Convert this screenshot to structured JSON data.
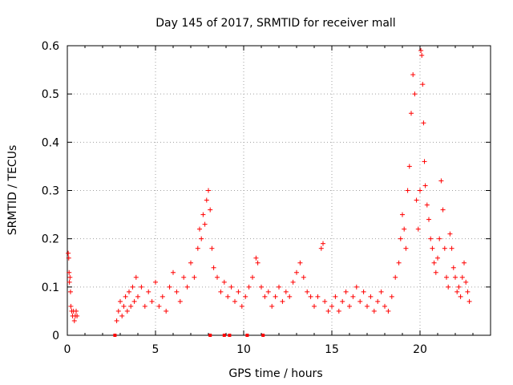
{
  "chart_data": {
    "type": "scatter",
    "title": "Day 145 of 2017, SRMTID for receiver mall",
    "xlabel": "GPS time / hours",
    "ylabel": "SRMTID / TECUs",
    "xlim": [
      0,
      24
    ],
    "ylim": [
      0,
      0.6
    ],
    "xticks": [
      0,
      5,
      10,
      15,
      20
    ],
    "xtick_labels": [
      "0",
      "5",
      "10",
      "15",
      "20"
    ],
    "yticks": [
      0,
      0.1,
      0.2,
      0.3,
      0.4,
      0.5,
      0.6
    ],
    "ytick_labels": [
      "0",
      "0.1",
      "0.2",
      "0.3",
      "0.4",
      "0.5",
      "0.6"
    ],
    "grid": true,
    "marker": "plus",
    "color": "#ff0000",
    "series": [
      {
        "name": "SRMTID",
        "points": [
          [
            0.05,
            0.17
          ],
          [
            0.08,
            0.16
          ],
          [
            0.1,
            0.13
          ],
          [
            0.12,
            0.11
          ],
          [
            0.15,
            0.12
          ],
          [
            0.18,
            0.09
          ],
          [
            0.2,
            0.06
          ],
          [
            0.25,
            0.05
          ],
          [
            0.3,
            0.04
          ],
          [
            0.35,
            0.05
          ],
          [
            0.4,
            0.03
          ],
          [
            0.45,
            0.04
          ],
          [
            0.5,
            0.05
          ],
          [
            0.55,
            0.04
          ],
          [
            2.8,
            0.03
          ],
          [
            2.9,
            0.05
          ],
          [
            3.0,
            0.07
          ],
          [
            3.1,
            0.04
          ],
          [
            3.2,
            0.06
          ],
          [
            3.3,
            0.08
          ],
          [
            3.4,
            0.05
          ],
          [
            3.5,
            0.09
          ],
          [
            3.6,
            0.06
          ],
          [
            3.7,
            0.1
          ],
          [
            3.8,
            0.07
          ],
          [
            3.9,
            0.12
          ],
          [
            4.0,
            0.08
          ],
          [
            4.2,
            0.1
          ],
          [
            4.4,
            0.06
          ],
          [
            4.6,
            0.09
          ],
          [
            4.8,
            0.07
          ],
          [
            5.0,
            0.11
          ],
          [
            5.2,
            0.06
          ],
          [
            5.4,
            0.08
          ],
          [
            5.6,
            0.05
          ],
          [
            5.8,
            0.1
          ],
          [
            6.0,
            0.13
          ],
          [
            6.2,
            0.09
          ],
          [
            6.4,
            0.07
          ],
          [
            6.6,
            0.12
          ],
          [
            6.8,
            0.1
          ],
          [
            7.0,
            0.15
          ],
          [
            7.2,
            0.12
          ],
          [
            7.4,
            0.18
          ],
          [
            7.5,
            0.22
          ],
          [
            7.6,
            0.2
          ],
          [
            7.7,
            0.25
          ],
          [
            7.8,
            0.23
          ],
          [
            7.9,
            0.28
          ],
          [
            8.0,
            0.3
          ],
          [
            8.1,
            0.26
          ],
          [
            8.2,
            0.18
          ],
          [
            8.3,
            0.14
          ],
          [
            8.5,
            0.12
          ],
          [
            8.7,
            0.09
          ],
          [
            8.9,
            0.11
          ],
          [
            9.1,
            0.08
          ],
          [
            9.3,
            0.1
          ],
          [
            9.5,
            0.07
          ],
          [
            9.7,
            0.09
          ],
          [
            9.9,
            0.06
          ],
          [
            10.1,
            0.08
          ],
          [
            10.3,
            0.1
          ],
          [
            10.5,
            0.12
          ],
          [
            10.7,
            0.16
          ],
          [
            10.8,
            0.15
          ],
          [
            11.0,
            0.1
          ],
          [
            11.2,
            0.08
          ],
          [
            11.4,
            0.09
          ],
          [
            11.6,
            0.06
          ],
          [
            11.8,
            0.08
          ],
          [
            12.0,
            0.1
          ],
          [
            12.2,
            0.07
          ],
          [
            12.4,
            0.09
          ],
          [
            12.6,
            0.08
          ],
          [
            12.8,
            0.11
          ],
          [
            13.0,
            0.13
          ],
          [
            13.2,
            0.15
          ],
          [
            13.4,
            0.12
          ],
          [
            13.6,
            0.09
          ],
          [
            13.8,
            0.08
          ],
          [
            14.0,
            0.06
          ],
          [
            14.2,
            0.08
          ],
          [
            14.4,
            0.18
          ],
          [
            14.5,
            0.19
          ],
          [
            14.6,
            0.07
          ],
          [
            14.8,
            0.05
          ],
          [
            15.0,
            0.06
          ],
          [
            15.2,
            0.08
          ],
          [
            15.4,
            0.05
          ],
          [
            15.6,
            0.07
          ],
          [
            15.8,
            0.09
          ],
          [
            16.0,
            0.06
          ],
          [
            16.2,
            0.08
          ],
          [
            16.4,
            0.1
          ],
          [
            16.6,
            0.07
          ],
          [
            16.8,
            0.09
          ],
          [
            17.0,
            0.06
          ],
          [
            17.2,
            0.08
          ],
          [
            17.4,
            0.05
          ],
          [
            17.6,
            0.07
          ],
          [
            17.8,
            0.09
          ],
          [
            18.0,
            0.06
          ],
          [
            18.2,
            0.05
          ],
          [
            18.4,
            0.08
          ],
          [
            18.6,
            0.12
          ],
          [
            18.8,
            0.15
          ],
          [
            18.9,
            0.2
          ],
          [
            19.0,
            0.25
          ],
          [
            19.1,
            0.22
          ],
          [
            19.2,
            0.18
          ],
          [
            19.3,
            0.3
          ],
          [
            19.4,
            0.35
          ],
          [
            19.5,
            0.46
          ],
          [
            19.6,
            0.54
          ],
          [
            19.7,
            0.5
          ],
          [
            19.8,
            0.28
          ],
          [
            19.9,
            0.22
          ],
          [
            20.0,
            0.3
          ],
          [
            20.05,
            0.59
          ],
          [
            20.1,
            0.58
          ],
          [
            20.15,
            0.52
          ],
          [
            20.2,
            0.44
          ],
          [
            20.25,
            0.36
          ],
          [
            20.3,
            0.31
          ],
          [
            20.4,
            0.27
          ],
          [
            20.5,
            0.24
          ],
          [
            20.6,
            0.2
          ],
          [
            20.7,
            0.18
          ],
          [
            20.8,
            0.15
          ],
          [
            20.9,
            0.13
          ],
          [
            21.0,
            0.16
          ],
          [
            21.1,
            0.2
          ],
          [
            21.2,
            0.32
          ],
          [
            21.3,
            0.26
          ],
          [
            21.4,
            0.18
          ],
          [
            21.5,
            0.12
          ],
          [
            21.6,
            0.1
          ],
          [
            21.7,
            0.21
          ],
          [
            21.8,
            0.18
          ],
          [
            21.9,
            0.14
          ],
          [
            22.0,
            0.12
          ],
          [
            22.1,
            0.09
          ],
          [
            22.2,
            0.1
          ],
          [
            22.3,
            0.08
          ],
          [
            22.4,
            0.12
          ],
          [
            22.5,
            0.15
          ],
          [
            22.6,
            0.11
          ],
          [
            22.7,
            0.09
          ],
          [
            22.8,
            0.07
          ]
        ],
        "markers_at_zero": [
          2.7,
          8.1,
          8.9,
          9.2,
          10.2,
          11.1
        ]
      }
    ]
  }
}
